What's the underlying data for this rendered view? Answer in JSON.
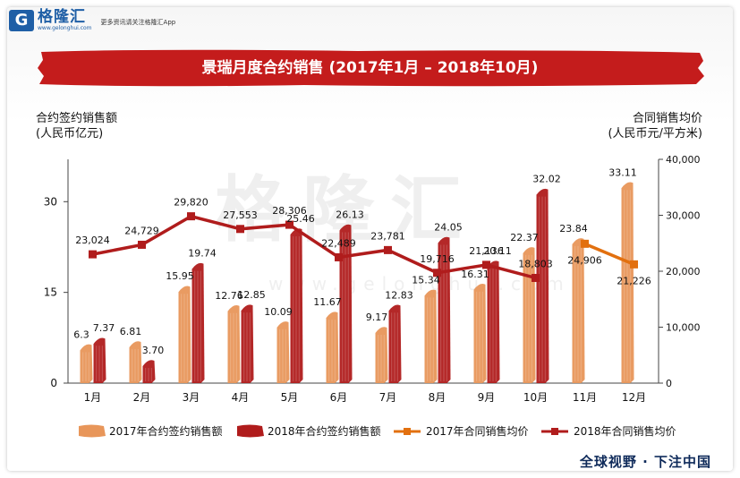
{
  "logo": {
    "mark": "G",
    "name": "格隆汇",
    "sub": "www.gelonghui.com",
    "tagline": "更多资讯请关注格隆汇App"
  },
  "watermark": {
    "name": "格隆汇",
    "url": "www.gelonghui.com"
  },
  "footer": "全球视野 · 下注中国",
  "colors": {
    "bar2017": "#e8965a",
    "bar2018": "#b01c1c",
    "line2017": "#e2700f",
    "line2018": "#b01c1c",
    "banner": "#c41c1c"
  },
  "chart_data": {
    "type": "bar",
    "title": "景瑞月度合约销售 (2017年1月 – 2018年10月)",
    "ylabel": "合约签约销售额\n(人民币亿元)",
    "y2label": "合同销售均价\n(人民币元/平方米)",
    "ylim": [
      0,
      37
    ],
    "y2lim": [
      0,
      40000
    ],
    "yticks": [
      "0",
      "15",
      "30"
    ],
    "yticks_values": [
      0,
      15,
      30
    ],
    "y2ticks": [
      "0",
      "10,000",
      "20,000",
      "30,000",
      "40,000"
    ],
    "y2ticks_values": [
      0,
      10000,
      20000,
      30000,
      40000
    ],
    "categories": [
      "1月",
      "2月",
      "3月",
      "4月",
      "5月",
      "6月",
      "7月",
      "8月",
      "9月",
      "10月",
      "11月",
      "12月"
    ],
    "series": [
      {
        "name": "2017年合约签约销售额",
        "kind": "bar",
        "values": [
          6.3,
          6.81,
          15.95,
          12.76,
          10.09,
          11.67,
          9.17,
          15.34,
          16.31,
          22.37,
          23.84,
          33.11
        ],
        "labels": [
          "6.3",
          "6.81",
          "15.95",
          "12.76",
          "10.09",
          "11.67",
          "9.17",
          "15.34",
          "16.31",
          "22.37",
          "23.84",
          "33.11"
        ]
      },
      {
        "name": "2018年合约签约销售额",
        "kind": "bar",
        "values": [
          7.37,
          3.7,
          19.74,
          12.85,
          25.46,
          26.13,
          12.83,
          24.05,
          20.11,
          32.02,
          null,
          null
        ],
        "labels": [
          "7.37",
          "3.70",
          "19.74",
          "12.85",
          "25.46",
          "26.13",
          "12.83",
          "24.05",
          "20.11",
          "32.02",
          "",
          ""
        ]
      },
      {
        "name": "2017年合同销售均价",
        "kind": "line",
        "axis": "y2",
        "values": [
          null,
          null,
          null,
          null,
          null,
          null,
          null,
          null,
          null,
          null,
          24906,
          21226
        ],
        "labels": [
          "",
          "",
          "",
          "",
          "",
          "",
          "",
          "",
          "",
          "",
          "24,906",
          "21,226"
        ]
      },
      {
        "name": "2018年合同销售均价",
        "kind": "line",
        "axis": "y2",
        "values": [
          23024,
          24729,
          29820,
          27553,
          28306,
          22489,
          23781,
          19716,
          21136,
          18803,
          null,
          null
        ],
        "labels": [
          "23,024",
          "24,729",
          "29,820",
          "27,553",
          "28,306",
          "22,489",
          "23,781",
          "19,716",
          "21,136",
          "18,803",
          "",
          ""
        ]
      }
    ],
    "legend": [
      "2017年合约签约销售额",
      "2018年合约签约销售额",
      "2017年合同销售均价",
      "2018年合同销售均价"
    ]
  }
}
